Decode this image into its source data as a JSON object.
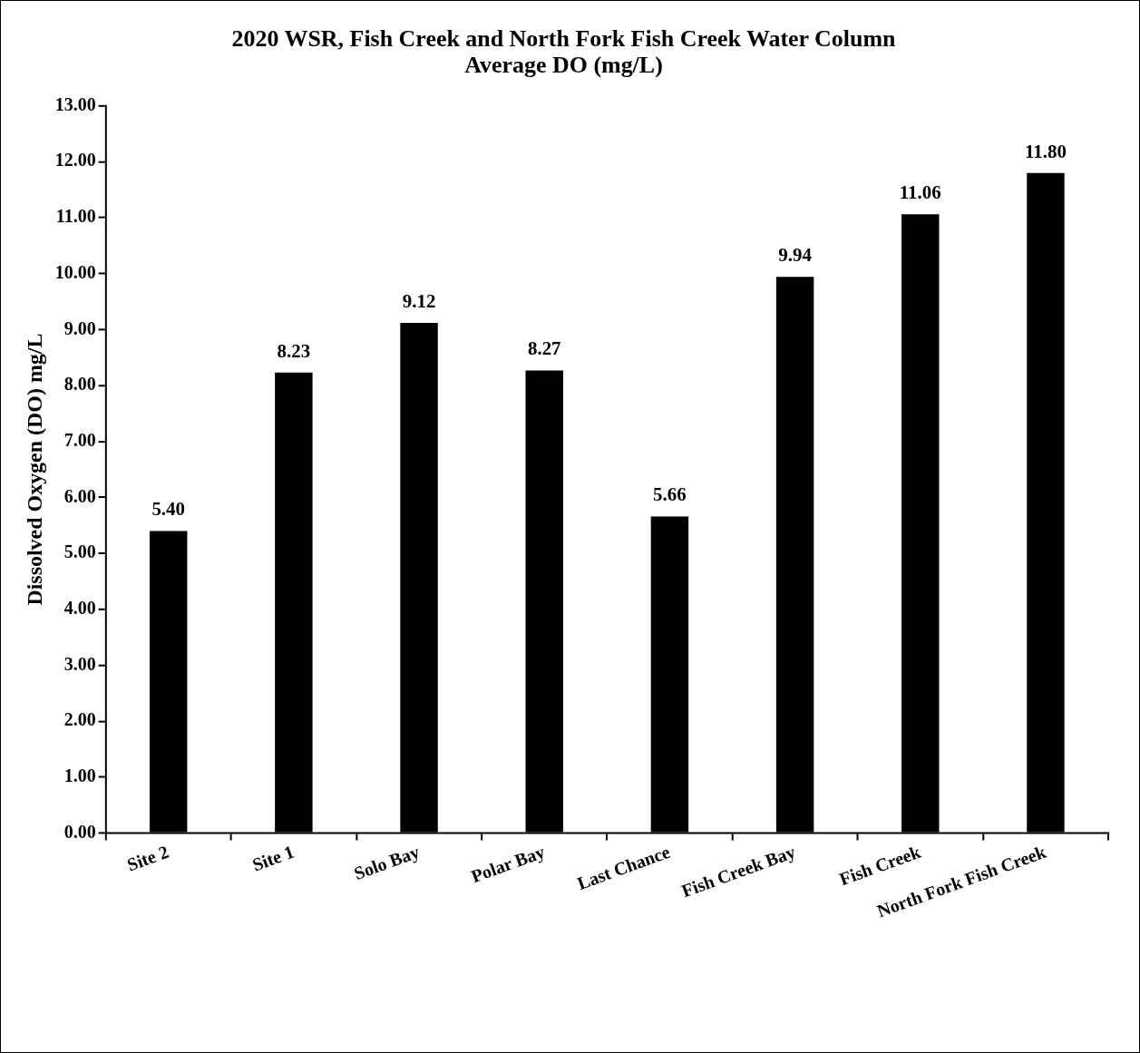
{
  "chart_data": {
    "type": "bar",
    "title": [
      "2020 WSR, Fish Creek and North Fork Fish Creek Water Column",
      "Average DO (mg/L)"
    ],
    "ylabel": "Dissolved Oxygen (DO) mg/L",
    "categories": [
      "Site 2",
      "Site 1",
      "Solo Bay",
      "Polar Bay",
      "Last Chance",
      "Fish Creek Bay",
      "Fish Creek",
      "North Fork Fish Creek"
    ],
    "values": [
      5.4,
      8.23,
      9.12,
      8.27,
      5.66,
      9.94,
      11.06,
      11.8
    ],
    "color": "#000000",
    "ylim": [
      0,
      13
    ],
    "yticks": [
      {
        "value": 0,
        "label": "0.00"
      },
      {
        "value": 1,
        "label": "1.00"
      },
      {
        "value": 2,
        "label": "2.00"
      },
      {
        "value": 3,
        "label": "3.00"
      },
      {
        "value": 4,
        "label": "4.00"
      },
      {
        "value": 5,
        "label": "5.00"
      },
      {
        "value": 6,
        "label": "6.00"
      },
      {
        "value": 7,
        "label": "7.00"
      },
      {
        "value": 8,
        "label": "8.00"
      },
      {
        "value": 9,
        "label": "9.00"
      },
      {
        "value": 10,
        "label": "10.00"
      },
      {
        "value": 11,
        "label": "11.00"
      },
      {
        "value": 12,
        "label": "12.00"
      },
      {
        "value": 13,
        "label": "13.00"
      }
    ],
    "value_labels": [
      "5.40",
      "8.23",
      "9.12",
      "8.27",
      "5.66",
      "9.94",
      "11.06",
      "11.80"
    ],
    "grid": false,
    "legend": false
  }
}
